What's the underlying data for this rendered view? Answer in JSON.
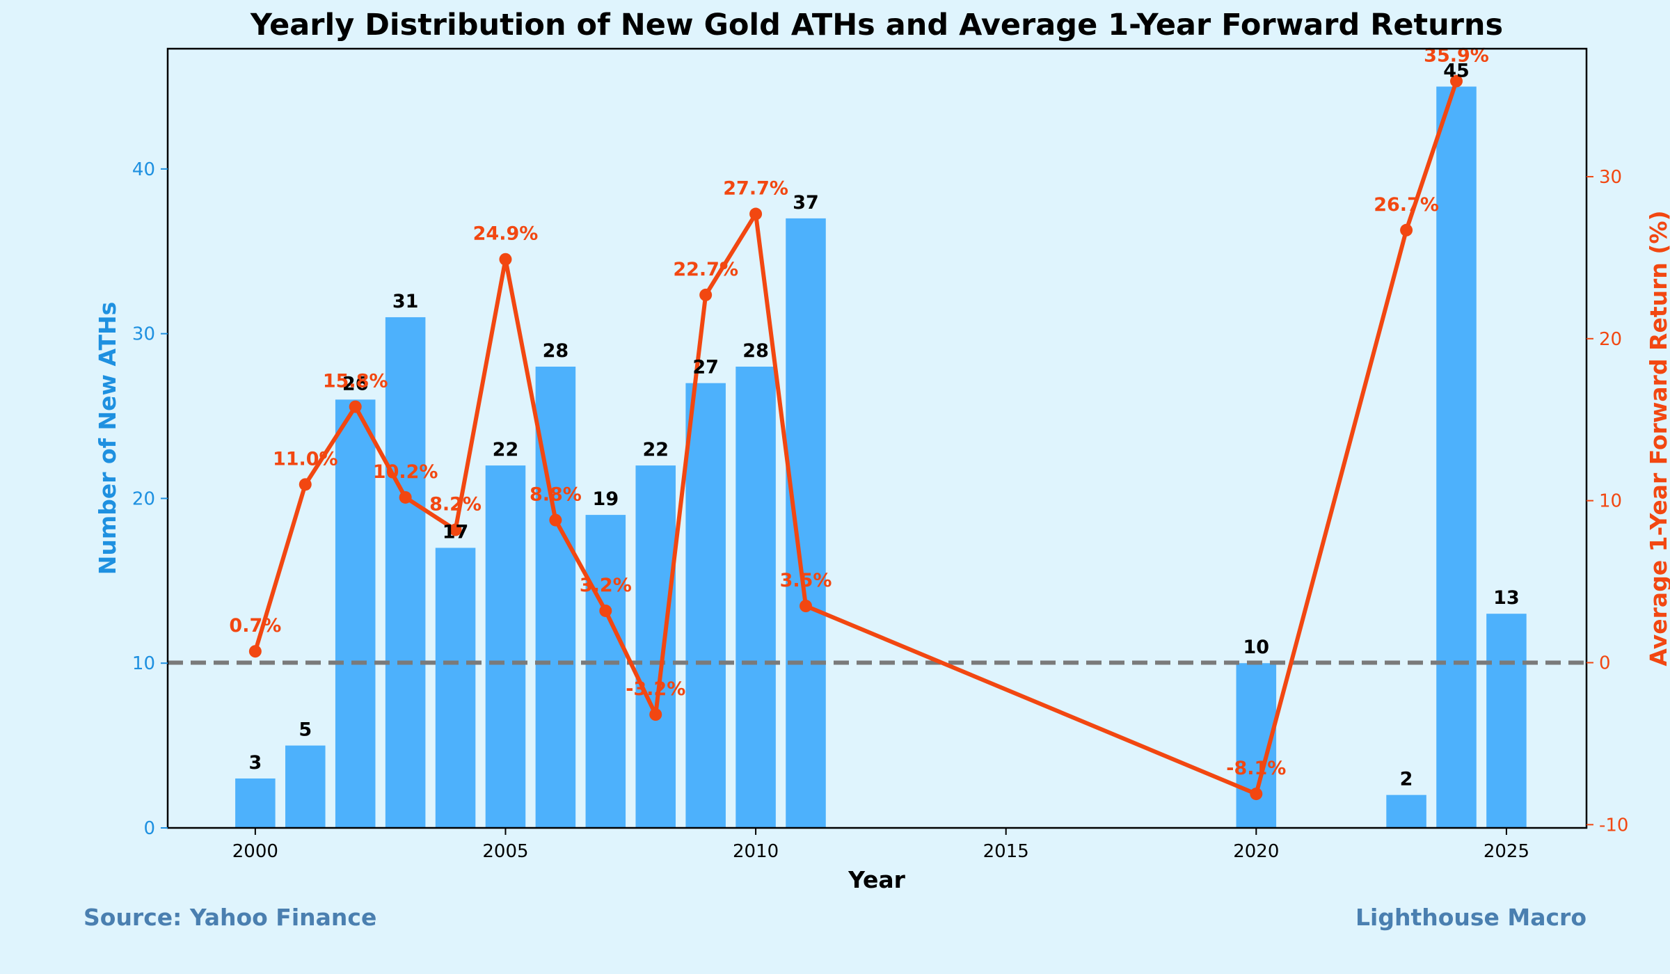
{
  "chart_data": {
    "type": "bar+line",
    "title": "Yearly Distribution of New Gold ATHs and Average 1-Year Forward Returns",
    "xlabel": "Year",
    "ylabel_left": "Number of New ATHs",
    "ylabel_right": "Average 1-Year Forward Return (%)",
    "xlim": [
      1998.25,
      2026.6
    ],
    "ylim_left": [
      0,
      47.3
    ],
    "ylim_right": [
      -10.2,
      37.9
    ],
    "x_ticks": [
      2000,
      2005,
      2010,
      2015,
      2020,
      2025
    ],
    "y_ticks_left": [
      0,
      10,
      20,
      30,
      40
    ],
    "y_ticks_right": [
      -10,
      0,
      10,
      20,
      30
    ],
    "reference_line": 0,
    "bars": {
      "name": "Number of New ATHs",
      "x": [
        2000,
        2001,
        2002,
        2003,
        2004,
        2005,
        2006,
        2007,
        2008,
        2009,
        2010,
        2011,
        2020,
        2023,
        2024,
        2025
      ],
      "values": [
        3,
        5,
        26,
        31,
        17,
        22,
        28,
        19,
        22,
        27,
        28,
        37,
        10,
        2,
        45,
        13
      ],
      "labels": [
        "3",
        "5",
        "26",
        "31",
        "17",
        "22",
        "28",
        "19",
        "22",
        "27",
        "28",
        "37",
        "10",
        "2",
        "45",
        "13"
      ]
    },
    "line": {
      "name": "Average 1-Year Forward Return (%)",
      "x": [
        2000,
        2001,
        2002,
        2003,
        2004,
        2005,
        2006,
        2007,
        2008,
        2009,
        2010,
        2011,
        2020,
        2023,
        2024
      ],
      "values": [
        0.7,
        11.0,
        15.8,
        10.2,
        8.2,
        24.9,
        8.8,
        3.2,
        -3.2,
        22.7,
        27.7,
        3.5,
        -8.1,
        26.7,
        35.9
      ],
      "labels": [
        "0.7%",
        "11.0%",
        "15.8%",
        "10.2%",
        "8.2%",
        "24.9%",
        "8.8%",
        "3.2%",
        "-3.2%",
        "22.7%",
        "27.7%",
        "3.5%",
        "-8.1%",
        "26.7%",
        "35.9%"
      ]
    },
    "colors": {
      "bar": "#4db1fc",
      "line": "#f24711",
      "left_axis": "#1e90e0",
      "right_axis": "#f24711",
      "reference": "#7a7a7a",
      "footer": "#4a7fb0",
      "background": "#dff4fd"
    }
  },
  "footer": {
    "source": "Source: Yahoo Finance",
    "brand": "Lighthouse Macro"
  }
}
